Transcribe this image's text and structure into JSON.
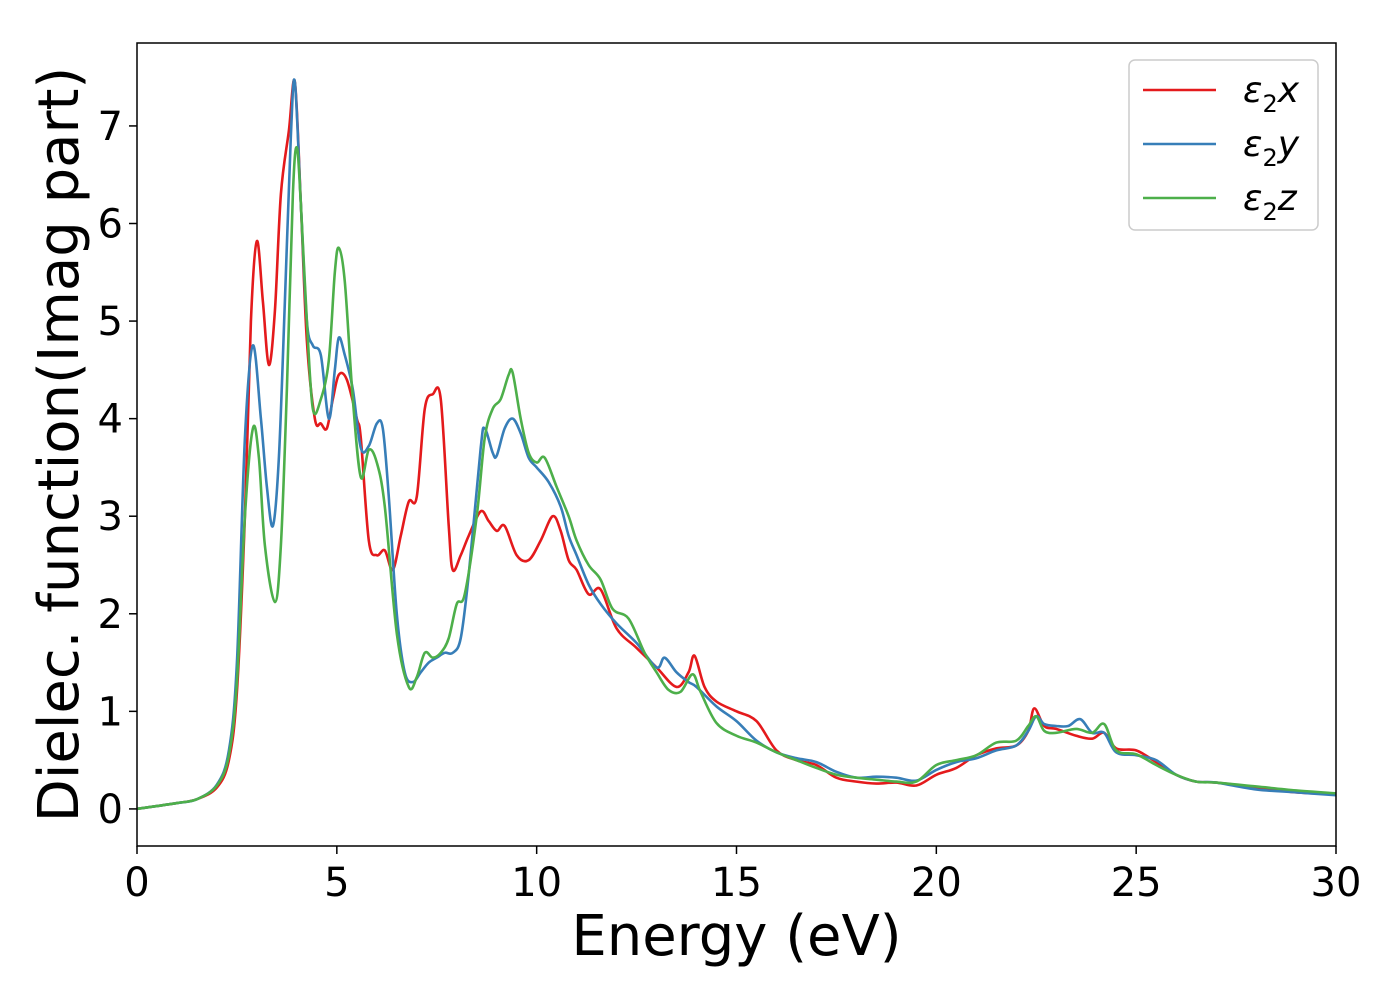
{
  "chart_data": {
    "type": "line",
    "xlabel": "Energy (eV)",
    "ylabel": "Dielec. function(Imag part)",
    "xlim": [
      0,
      30
    ],
    "ylim": [
      -0.38,
      7.85
    ],
    "xticks": [
      0,
      5,
      10,
      15,
      20,
      25,
      30
    ],
    "yticks": [
      0,
      1,
      2,
      3,
      4,
      5,
      6,
      7
    ],
    "grid": false,
    "legend_position": "top-right",
    "series": [
      {
        "name": "ε2x",
        "label_base": "ε",
        "label_sub": "2",
        "label_var": "x",
        "color": "#e41a1c",
        "points": [
          [
            0,
            0
          ],
          [
            1,
            0.06
          ],
          [
            1.5,
            0.1
          ],
          [
            2,
            0.22
          ],
          [
            2.3,
            0.5
          ],
          [
            2.5,
            1.2
          ],
          [
            2.7,
            3.0
          ],
          [
            2.85,
            5.0
          ],
          [
            3.0,
            5.82
          ],
          [
            3.15,
            5.2
          ],
          [
            3.3,
            4.55
          ],
          [
            3.45,
            5.1
          ],
          [
            3.6,
            6.3
          ],
          [
            3.8,
            6.95
          ],
          [
            3.95,
            7.45
          ],
          [
            4.1,
            6.2
          ],
          [
            4.25,
            4.8
          ],
          [
            4.45,
            4.0
          ],
          [
            4.6,
            3.95
          ],
          [
            4.75,
            3.9
          ],
          [
            4.9,
            4.2
          ],
          [
            5.05,
            4.45
          ],
          [
            5.25,
            4.4
          ],
          [
            5.5,
            4.0
          ],
          [
            5.6,
            3.8
          ],
          [
            5.8,
            2.75
          ],
          [
            6.0,
            2.6
          ],
          [
            6.2,
            2.65
          ],
          [
            6.4,
            2.45
          ],
          [
            6.6,
            2.8
          ],
          [
            6.8,
            3.15
          ],
          [
            7.0,
            3.2
          ],
          [
            7.2,
            4.1
          ],
          [
            7.4,
            4.25
          ],
          [
            7.6,
            4.2
          ],
          [
            7.8,
            2.9
          ],
          [
            7.9,
            2.45
          ],
          [
            8.1,
            2.6
          ],
          [
            8.3,
            2.8
          ],
          [
            8.6,
            3.05
          ],
          [
            8.8,
            2.95
          ],
          [
            9.0,
            2.85
          ],
          [
            9.2,
            2.9
          ],
          [
            9.5,
            2.6
          ],
          [
            9.8,
            2.55
          ],
          [
            10.1,
            2.75
          ],
          [
            10.4,
            3.0
          ],
          [
            10.6,
            2.85
          ],
          [
            10.8,
            2.55
          ],
          [
            11.0,
            2.45
          ],
          [
            11.3,
            2.2
          ],
          [
            11.6,
            2.25
          ],
          [
            12.0,
            1.85
          ],
          [
            12.5,
            1.65
          ],
          [
            13.0,
            1.45
          ],
          [
            13.5,
            1.25
          ],
          [
            13.8,
            1.4
          ],
          [
            13.95,
            1.57
          ],
          [
            14.2,
            1.25
          ],
          [
            14.5,
            1.1
          ],
          [
            15.0,
            1.0
          ],
          [
            15.5,
            0.9
          ],
          [
            16.0,
            0.6
          ],
          [
            16.5,
            0.5
          ],
          [
            17.0,
            0.45
          ],
          [
            17.5,
            0.32
          ],
          [
            18.0,
            0.28
          ],
          [
            18.5,
            0.26
          ],
          [
            19.0,
            0.27
          ],
          [
            19.5,
            0.24
          ],
          [
            20.0,
            0.35
          ],
          [
            20.5,
            0.42
          ],
          [
            21.0,
            0.55
          ],
          [
            21.5,
            0.62
          ],
          [
            22.0,
            0.65
          ],
          [
            22.3,
            0.8
          ],
          [
            22.45,
            1.03
          ],
          [
            22.7,
            0.85
          ],
          [
            23.0,
            0.82
          ],
          [
            23.5,
            0.75
          ],
          [
            23.9,
            0.72
          ],
          [
            24.2,
            0.78
          ],
          [
            24.5,
            0.62
          ],
          [
            25.0,
            0.6
          ],
          [
            25.5,
            0.48
          ],
          [
            26.0,
            0.35
          ],
          [
            26.5,
            0.28
          ],
          [
            27.0,
            0.27
          ],
          [
            28.0,
            0.22
          ],
          [
            29.0,
            0.17
          ],
          [
            30.0,
            0.15
          ]
        ]
      },
      {
        "name": "ε2y",
        "label_base": "ε",
        "label_sub": "2",
        "label_var": "y",
        "color": "#377eb8",
        "points": [
          [
            0,
            0
          ],
          [
            1,
            0.06
          ],
          [
            1.5,
            0.1
          ],
          [
            2,
            0.25
          ],
          [
            2.3,
            0.6
          ],
          [
            2.5,
            1.5
          ],
          [
            2.7,
            3.8
          ],
          [
            2.9,
            4.75
          ],
          [
            3.1,
            4.0
          ],
          [
            3.25,
            3.3
          ],
          [
            3.4,
            2.9
          ],
          [
            3.55,
            3.6
          ],
          [
            3.7,
            5.2
          ],
          [
            3.85,
            6.9
          ],
          [
            3.95,
            7.45
          ],
          [
            4.1,
            6.2
          ],
          [
            4.25,
            5.0
          ],
          [
            4.4,
            4.75
          ],
          [
            4.6,
            4.65
          ],
          [
            4.8,
            4.0
          ],
          [
            4.95,
            4.5
          ],
          [
            5.05,
            4.83
          ],
          [
            5.2,
            4.65
          ],
          [
            5.4,
            4.3
          ],
          [
            5.6,
            3.7
          ],
          [
            5.8,
            3.72
          ],
          [
            6.0,
            3.95
          ],
          [
            6.15,
            3.9
          ],
          [
            6.3,
            3.2
          ],
          [
            6.5,
            2.0
          ],
          [
            6.7,
            1.4
          ],
          [
            6.9,
            1.3
          ],
          [
            7.1,
            1.4
          ],
          [
            7.3,
            1.5
          ],
          [
            7.5,
            1.55
          ],
          [
            7.7,
            1.6
          ],
          [
            7.9,
            1.6
          ],
          [
            8.1,
            1.75
          ],
          [
            8.3,
            2.4
          ],
          [
            8.6,
            3.7
          ],
          [
            8.7,
            3.9
          ],
          [
            8.9,
            3.65
          ],
          [
            9.0,
            3.62
          ],
          [
            9.2,
            3.9
          ],
          [
            9.4,
            4.0
          ],
          [
            9.6,
            3.85
          ],
          [
            9.8,
            3.6
          ],
          [
            10.0,
            3.5
          ],
          [
            10.3,
            3.35
          ],
          [
            10.6,
            3.1
          ],
          [
            10.8,
            2.8
          ],
          [
            11.0,
            2.6
          ],
          [
            11.3,
            2.3
          ],
          [
            11.6,
            2.1
          ],
          [
            12.0,
            1.9
          ],
          [
            12.5,
            1.7
          ],
          [
            13.0,
            1.45
          ],
          [
            13.2,
            1.55
          ],
          [
            13.5,
            1.4
          ],
          [
            13.8,
            1.3
          ],
          [
            14.0,
            1.25
          ],
          [
            14.5,
            1.05
          ],
          [
            15.0,
            0.9
          ],
          [
            15.5,
            0.7
          ],
          [
            16.0,
            0.58
          ],
          [
            16.5,
            0.52
          ],
          [
            17.0,
            0.48
          ],
          [
            17.5,
            0.38
          ],
          [
            18.0,
            0.32
          ],
          [
            18.5,
            0.33
          ],
          [
            19.0,
            0.32
          ],
          [
            19.5,
            0.29
          ],
          [
            20.0,
            0.4
          ],
          [
            20.5,
            0.48
          ],
          [
            21.0,
            0.52
          ],
          [
            21.5,
            0.6
          ],
          [
            22.0,
            0.65
          ],
          [
            22.3,
            0.8
          ],
          [
            22.5,
            0.95
          ],
          [
            22.7,
            0.87
          ],
          [
            23.0,
            0.85
          ],
          [
            23.3,
            0.85
          ],
          [
            23.6,
            0.92
          ],
          [
            23.9,
            0.78
          ],
          [
            24.2,
            0.78
          ],
          [
            24.5,
            0.58
          ],
          [
            25.0,
            0.55
          ],
          [
            25.5,
            0.5
          ],
          [
            26.0,
            0.35
          ],
          [
            26.5,
            0.28
          ],
          [
            27.0,
            0.27
          ],
          [
            28.0,
            0.2
          ],
          [
            29.0,
            0.17
          ],
          [
            30.0,
            0.14
          ]
        ]
      },
      {
        "name": "ε2z",
        "label_base": "ε",
        "label_sub": "2",
        "label_var": "z",
        "color": "#4daf4a",
        "points": [
          [
            0,
            0
          ],
          [
            1,
            0.06
          ],
          [
            1.5,
            0.1
          ],
          [
            2,
            0.24
          ],
          [
            2.3,
            0.55
          ],
          [
            2.5,
            1.3
          ],
          [
            2.7,
            3.0
          ],
          [
            2.9,
            3.9
          ],
          [
            3.05,
            3.6
          ],
          [
            3.2,
            2.7
          ],
          [
            3.45,
            2.12
          ],
          [
            3.6,
            2.7
          ],
          [
            3.75,
            4.3
          ],
          [
            3.9,
            6.3
          ],
          [
            4.0,
            6.78
          ],
          [
            4.1,
            6.2
          ],
          [
            4.25,
            5.0
          ],
          [
            4.4,
            4.1
          ],
          [
            4.6,
            4.2
          ],
          [
            4.8,
            4.6
          ],
          [
            4.95,
            5.5
          ],
          [
            5.05,
            5.75
          ],
          [
            5.2,
            5.4
          ],
          [
            5.4,
            4.2
          ],
          [
            5.6,
            3.4
          ],
          [
            5.8,
            3.68
          ],
          [
            6.0,
            3.55
          ],
          [
            6.2,
            3.1
          ],
          [
            6.5,
            1.8
          ],
          [
            6.8,
            1.25
          ],
          [
            7.0,
            1.35
          ],
          [
            7.2,
            1.6
          ],
          [
            7.4,
            1.55
          ],
          [
            7.6,
            1.6
          ],
          [
            7.8,
            1.75
          ],
          [
            8.0,
            2.1
          ],
          [
            8.2,
            2.2
          ],
          [
            8.5,
            3.0
          ],
          [
            8.7,
            3.8
          ],
          [
            8.9,
            4.1
          ],
          [
            9.1,
            4.2
          ],
          [
            9.3,
            4.45
          ],
          [
            9.4,
            4.47
          ],
          [
            9.6,
            4.0
          ],
          [
            9.8,
            3.65
          ],
          [
            10.0,
            3.55
          ],
          [
            10.2,
            3.6
          ],
          [
            10.5,
            3.3
          ],
          [
            10.8,
            3.0
          ],
          [
            11.0,
            2.75
          ],
          [
            11.3,
            2.5
          ],
          [
            11.6,
            2.35
          ],
          [
            11.9,
            2.05
          ],
          [
            12.3,
            1.95
          ],
          [
            12.7,
            1.6
          ],
          [
            13.0,
            1.4
          ],
          [
            13.3,
            1.22
          ],
          [
            13.6,
            1.2
          ],
          [
            13.9,
            1.38
          ],
          [
            14.1,
            1.2
          ],
          [
            14.5,
            0.88
          ],
          [
            15.0,
            0.75
          ],
          [
            15.5,
            0.68
          ],
          [
            16.0,
            0.58
          ],
          [
            16.5,
            0.5
          ],
          [
            17.0,
            0.42
          ],
          [
            17.5,
            0.35
          ],
          [
            18.0,
            0.32
          ],
          [
            18.5,
            0.3
          ],
          [
            19.0,
            0.28
          ],
          [
            19.5,
            0.28
          ],
          [
            20.0,
            0.45
          ],
          [
            20.5,
            0.5
          ],
          [
            21.0,
            0.55
          ],
          [
            21.5,
            0.68
          ],
          [
            22.0,
            0.7
          ],
          [
            22.3,
            0.85
          ],
          [
            22.5,
            0.95
          ],
          [
            22.7,
            0.8
          ],
          [
            23.0,
            0.78
          ],
          [
            23.5,
            0.82
          ],
          [
            23.9,
            0.78
          ],
          [
            24.2,
            0.87
          ],
          [
            24.5,
            0.6
          ],
          [
            25.0,
            0.56
          ],
          [
            25.5,
            0.45
          ],
          [
            26.0,
            0.35
          ],
          [
            26.5,
            0.28
          ],
          [
            27.0,
            0.27
          ],
          [
            28.0,
            0.23
          ],
          [
            29.0,
            0.19
          ],
          [
            30.0,
            0.16
          ]
        ]
      }
    ]
  }
}
